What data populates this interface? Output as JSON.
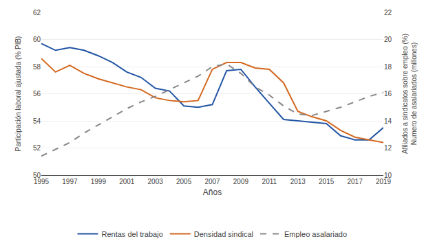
{
  "chart_data": {
    "type": "line",
    "xlabel": "Años",
    "ylabel": "Participación laboral ajustada (% PIB)",
    "y2label": [
      "Afiliados a sindicatos sobre empleo (%)",
      "Numero de asalariados (millones)"
    ],
    "x": [
      1995,
      1996,
      1997,
      1998,
      1999,
      2000,
      2001,
      2002,
      2003,
      2004,
      2005,
      2006,
      2007,
      2008,
      2009,
      2010,
      2011,
      2012,
      2013,
      2014,
      2015,
      2016,
      2017,
      2018,
      2019
    ],
    "series": [
      {
        "name": "Rentas del trabajo",
        "color": "#2255a4",
        "line_style": "solid",
        "values": [
          59.7,
          59.2,
          59.4,
          59.2,
          58.8,
          58.3,
          57.6,
          57.2,
          56.4,
          56.2,
          55.1,
          55.0,
          55.2,
          57.7,
          57.8,
          56.5,
          55.3,
          54.1,
          54.0,
          53.9,
          53.8,
          52.9,
          52.6,
          52.6,
          53.5
        ]
      },
      {
        "name": "Densidad sindical",
        "color": "#d4671e",
        "line_style": "solid",
        "values": [
          58.6,
          57.6,
          58.1,
          57.5,
          57.1,
          56.8,
          56.5,
          56.3,
          55.7,
          55.5,
          55.4,
          55.5,
          57.8,
          58.3,
          58.3,
          57.9,
          57.8,
          56.8,
          54.7,
          54.3,
          54.0,
          53.3,
          52.8,
          52.6,
          52.4
        ]
      },
      {
        "name": "Empleo asalariado",
        "color": "#888888",
        "line_style": "dashed",
        "axis": "y2",
        "values": [
          11.4,
          11.9,
          12.4,
          13.1,
          13.7,
          14.3,
          14.9,
          15.4,
          15.8,
          16.3,
          16.8,
          17.3,
          18.0,
          18.2,
          17.5,
          16.5,
          15.9,
          15.1,
          14.5,
          14.4,
          14.7,
          15.0,
          15.4,
          15.8,
          16.1
        ]
      }
    ],
    "xlim": [
      1995,
      2019
    ],
    "xticks": [
      1995,
      1997,
      1999,
      2001,
      2003,
      2005,
      2007,
      2009,
      2011,
      2013,
      2015,
      2017,
      2019
    ],
    "ylim": [
      50,
      62
    ],
    "yticks": [
      50,
      52,
      54,
      56,
      58,
      60,
      62
    ],
    "y2lim": [
      10,
      22
    ],
    "y2ticks": [
      10,
      12,
      14,
      16,
      18,
      20,
      22
    ],
    "grid": "y",
    "legend": "bottom"
  }
}
